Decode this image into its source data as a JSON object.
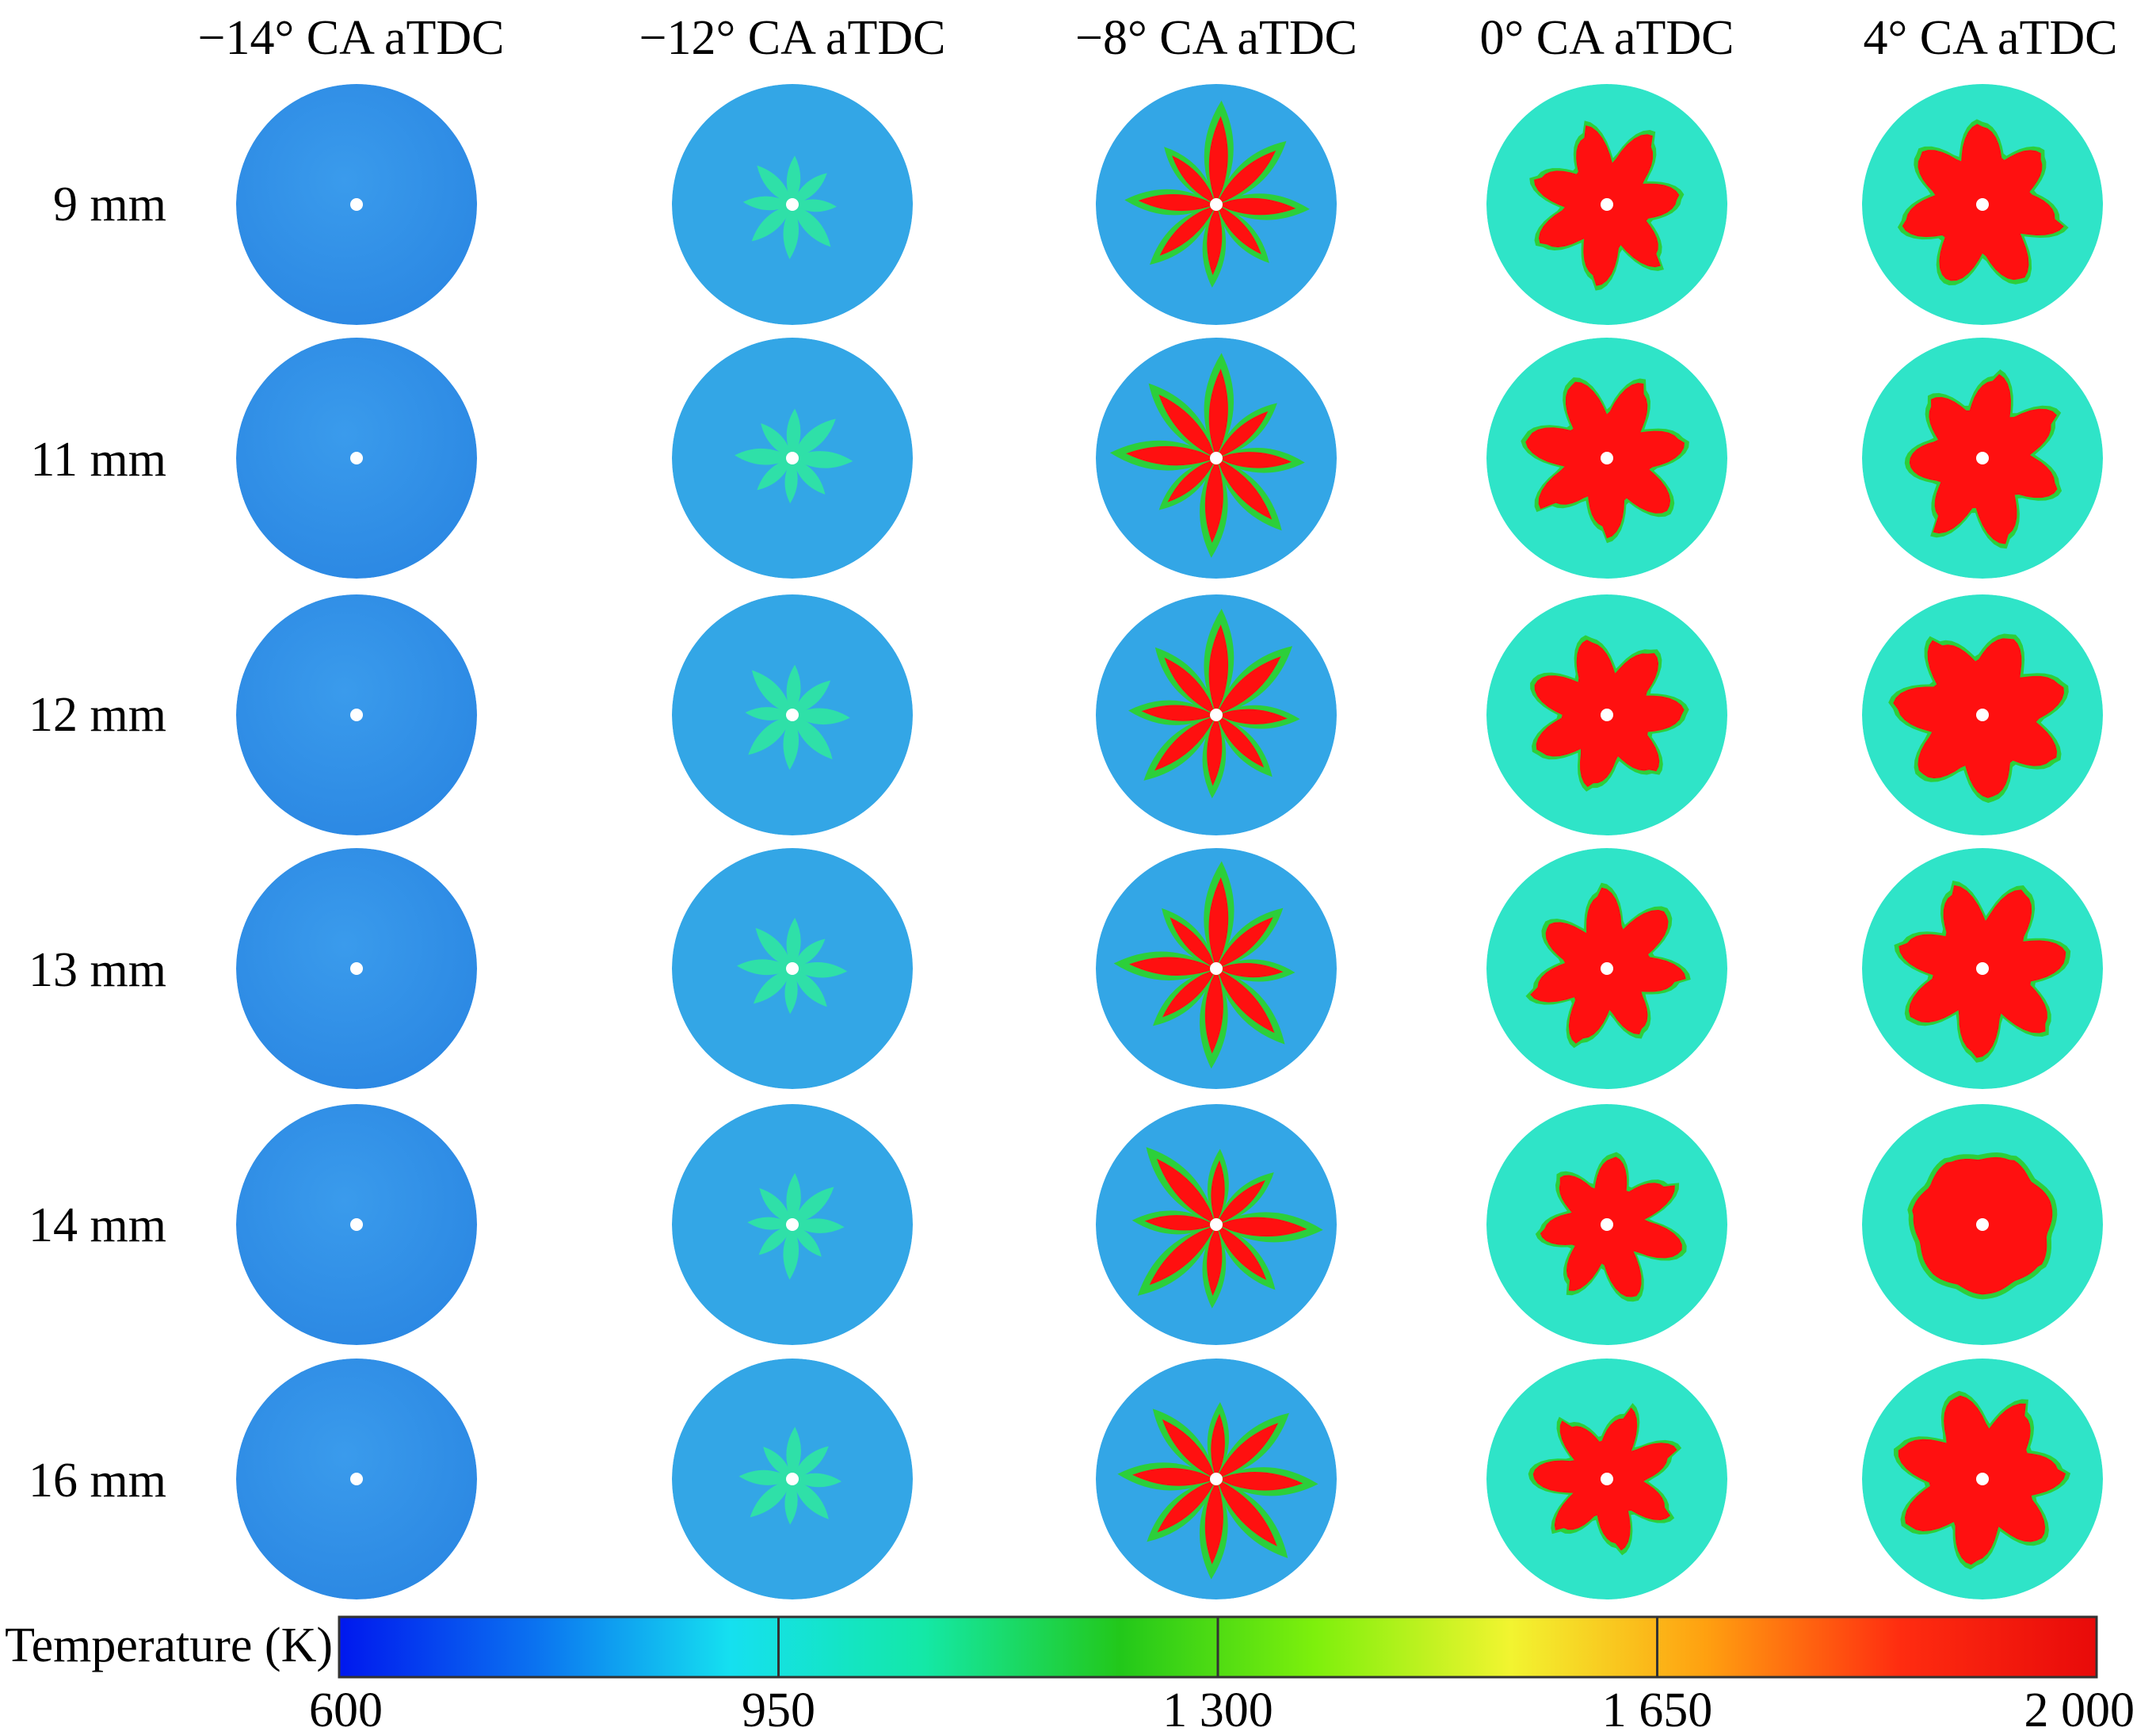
{
  "figure": {
    "columns": [
      "−14° CA aTDC",
      "−12° CA aTDC",
      "−8° CA aTDC",
      "0° CA aTDC",
      "4° CA aTDC"
    ],
    "rows": [
      "9 mm",
      "11 mm",
      "12 mm",
      "13 mm",
      "14 mm",
      "16 mm"
    ],
    "colorbar": {
      "label": "Temperature (K)",
      "min": 600,
      "max": 2000,
      "ticks": [
        {
          "value": 600,
          "label": "600"
        },
        {
          "value": 950,
          "label": "950"
        },
        {
          "value": 1300,
          "label": "1 300"
        },
        {
          "value": 1650,
          "label": "1 650"
        },
        {
          "value": 2000,
          "label": "2 000"
        }
      ],
      "colors": [
        "#0018ee",
        "#0b72f0",
        "#15e0f0",
        "#14e8a6",
        "#22c81a",
        "#7ef00c",
        "#f2f430",
        "#ffa010",
        "#ff2c10",
        "#e80a0a"
      ]
    },
    "flame_colors": {
      "background_cold": "#2f8fe6",
      "background_warm": "#2fe4c8",
      "flame_edge": "#2ccf3a",
      "flame_core": "#ff1010",
      "center": "#ffffff"
    },
    "fields": [
      [
        0.0,
        0.12,
        0.3,
        0.62,
        0.72
      ],
      [
        0.0,
        0.1,
        0.32,
        0.64,
        0.72
      ],
      [
        0.0,
        0.11,
        0.32,
        0.64,
        0.8
      ],
      [
        0.0,
        0.1,
        0.27,
        0.62,
        0.72
      ],
      [
        0.0,
        0.1,
        0.28,
        0.56,
        0.98
      ],
      [
        0.0,
        0.09,
        0.25,
        0.55,
        0.76
      ]
    ]
  }
}
